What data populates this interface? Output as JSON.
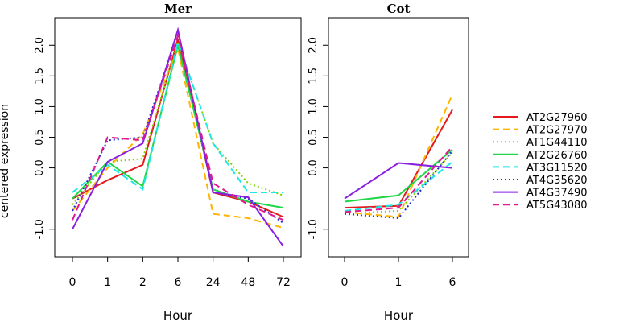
{
  "chart_data": {
    "type": "line",
    "ylabel": "centered expression",
    "y_ticks": [
      "-1.0",
      "0.0",
      "0.5",
      "1.0",
      "1.5",
      "2.0"
    ],
    "ylim": [
      -1.45,
      2.45
    ],
    "legend_position": "right",
    "series_styles": [
      {
        "name": "AT2G27960",
        "color": "#e41a1c",
        "dash": "solid"
      },
      {
        "name": "AT2G27970",
        "color": "#ffb400",
        "dash": "dashed"
      },
      {
        "name": "AT1G44110",
        "color": "#7fd400",
        "dash": "dotted"
      },
      {
        "name": "AT2G26760",
        "color": "#1fd647",
        "dash": "solid"
      },
      {
        "name": "AT3G11520",
        "color": "#1ce7e7",
        "dash": "dashed"
      },
      {
        "name": "AT4G35620",
        "color": "#1f2fd0",
        "dash": "dotted"
      },
      {
        "name": "AT4G37490",
        "color": "#8a1fe0",
        "dash": "solid"
      },
      {
        "name": "AT5G43080",
        "color": "#e1188f",
        "dash": "dashed"
      }
    ],
    "panels": [
      {
        "title": "Mer",
        "xlabel": "Hour",
        "categories": [
          "0",
          "1",
          "2",
          "6",
          "24",
          "48",
          "72"
        ],
        "series": [
          {
            "name": "AT2G27960",
            "values": [
              -0.5,
              -0.2,
              0.05,
              2.1,
              -0.4,
              -0.55,
              -0.8
            ]
          },
          {
            "name": "AT2G27970",
            "values": [
              -0.7,
              0.0,
              0.55,
              1.95,
              -0.75,
              -0.82,
              -0.98
            ]
          },
          {
            "name": "AT1G44110",
            "values": [
              -0.6,
              0.1,
              0.15,
              2.05,
              0.4,
              -0.25,
              -0.45
            ]
          },
          {
            "name": "AT2G26760",
            "values": [
              -0.5,
              0.1,
              -0.3,
              2.0,
              -0.35,
              -0.55,
              -0.65
            ]
          },
          {
            "name": "AT3G11520",
            "values": [
              -0.4,
              0.05,
              -0.35,
              2.05,
              0.4,
              -0.4,
              -0.4
            ]
          },
          {
            "name": "AT4G35620",
            "values": [
              -0.7,
              0.45,
              0.5,
              2.2,
              -0.4,
              -0.5,
              -0.9
            ]
          },
          {
            "name": "AT4G37490",
            "values": [
              -1.0,
              0.1,
              0.4,
              2.25,
              -0.4,
              -0.48,
              -1.28
            ]
          },
          {
            "name": "AT5G43080",
            "values": [
              -0.85,
              0.5,
              0.45,
              2.15,
              -0.25,
              -0.6,
              -0.85
            ]
          }
        ]
      },
      {
        "title": "Cot",
        "xlabel": "Hour",
        "categories": [
          "0",
          "1",
          "6"
        ],
        "series": [
          {
            "name": "AT2G27960",
            "values": [
              -0.65,
              -0.62,
              0.95
            ]
          },
          {
            "name": "AT2G27970",
            "values": [
              -0.72,
              -0.8,
              1.2
            ]
          },
          {
            "name": "AT1G44110",
            "values": [
              -0.75,
              -0.7,
              0.25
            ]
          },
          {
            "name": "AT2G26760",
            "values": [
              -0.55,
              -0.45,
              0.3
            ]
          },
          {
            "name": "AT3G11520",
            "values": [
              -0.7,
              -0.6,
              0.1
            ]
          },
          {
            "name": "AT4G35620",
            "values": [
              -0.75,
              -0.82,
              0.28
            ]
          },
          {
            "name": "AT4G37490",
            "values": [
              -0.5,
              0.08,
              0.0
            ]
          },
          {
            "name": "AT5G43080",
            "values": [
              -0.72,
              -0.65,
              0.35
            ]
          }
        ]
      }
    ]
  }
}
